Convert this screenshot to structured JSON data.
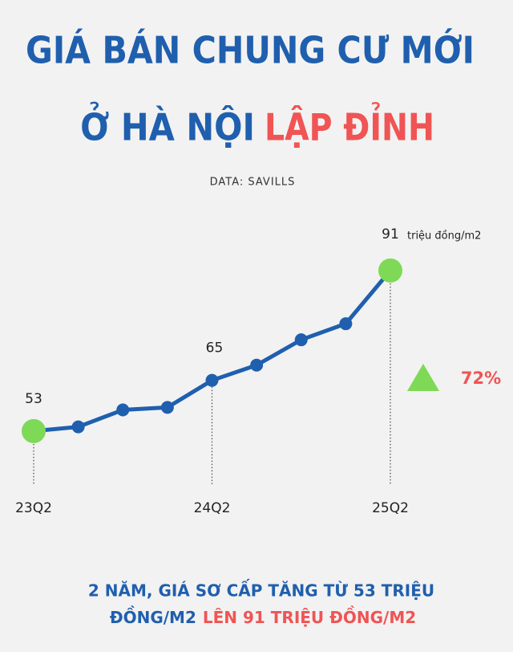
{
  "chart_data": {
    "type": "line",
    "title": {
      "line1": "GIÁ BÁN CHUNG CƯ MỚI",
      "line2": "Ở HÀ NỘI",
      "highlight": "LẬP ĐỈNH"
    },
    "source": "DATA: SAVILLS",
    "unit": "triệu đồng/m2",
    "categories": [
      "23Q2",
      null,
      null,
      null,
      "24Q2",
      null,
      null,
      null,
      "25Q2"
    ],
    "values": [
      53,
      54,
      58,
      58.6,
      65,
      68.6,
      74.6,
      78.4,
      91
    ],
    "ylim": [
      41,
      98
    ],
    "color": "#1f5fae",
    "marker_color": "#7ed957",
    "highlight_color": "#f05454",
    "change": {
      "value": 72,
      "label": "72%"
    },
    "footnote": {
      "line1": "2 NĂM, GIÁ SƠ CẤP TĂNG TỪ 53 TRIỆU",
      "line2": "ĐỒNG/M2",
      "highlight": "LÊN 91 TRIỆU ĐỒNG/M2"
    }
  }
}
